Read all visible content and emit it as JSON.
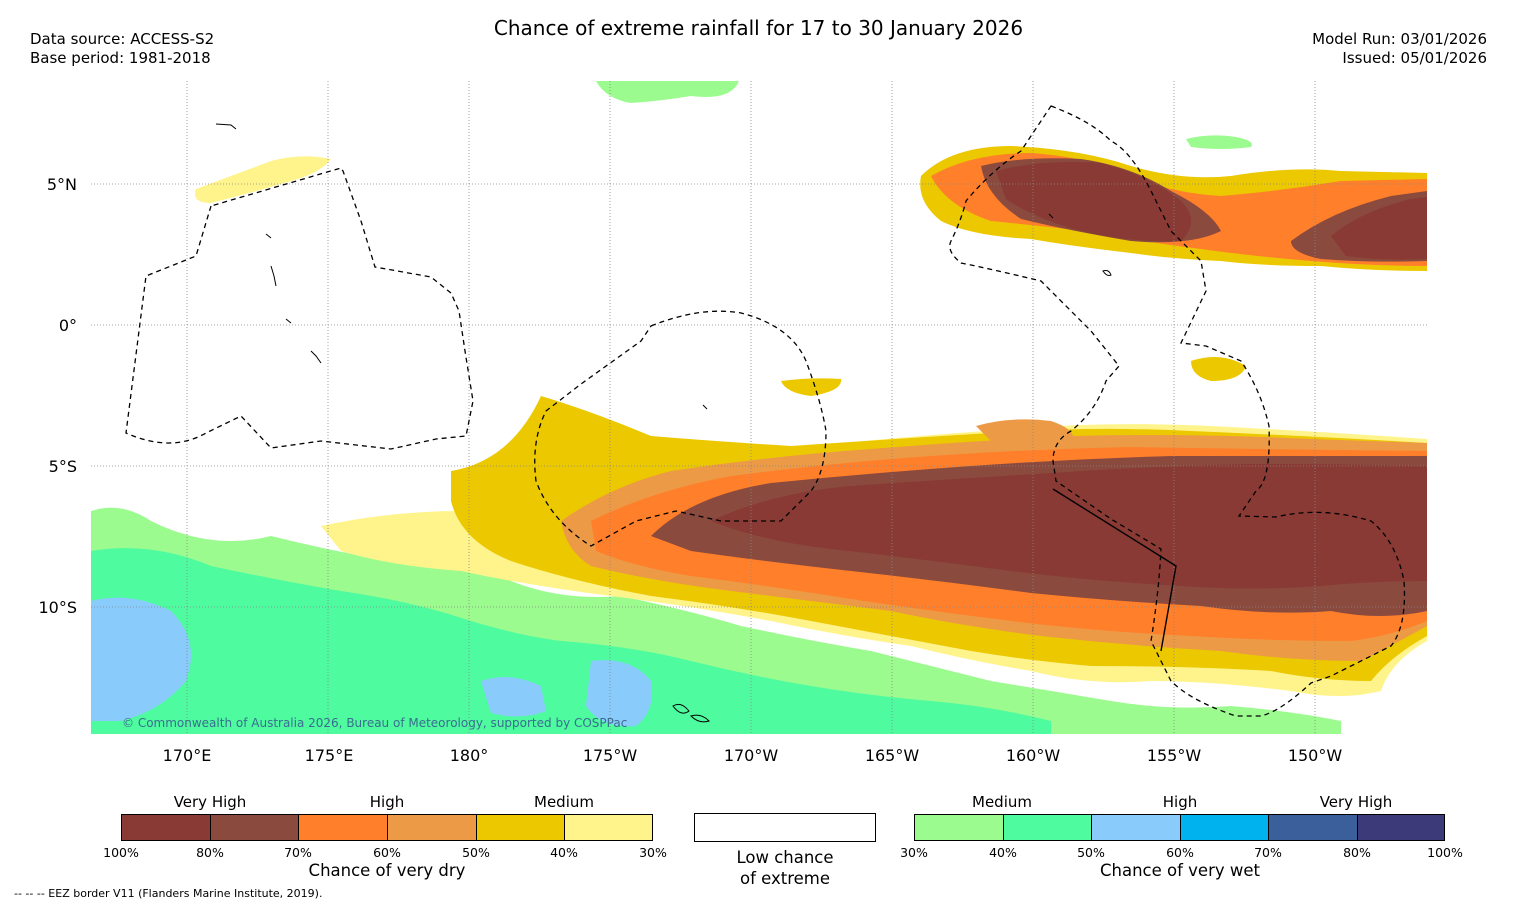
{
  "header": {
    "title": "Chance of extreme rainfall for 17 to 30 January 2026",
    "data_source": "Data source: ACCESS-S2",
    "base_period": "Base period: 1981-2018",
    "model_run": "Model Run: 03/01/2026",
    "issued": "Issued: 05/01/2026"
  },
  "map": {
    "lat_labels": [
      "5°N",
      "0°",
      "5°S",
      "10°S"
    ],
    "lon_labels": [
      "170°E",
      "175°E",
      "180°",
      "175°W",
      "170°W",
      "165°W",
      "160°W",
      "155°W",
      "150°W"
    ],
    "copyright": "© Commonwealth of Australia 2026, Bureau of Meteorology, supported by COSPPac"
  },
  "legend": {
    "dry": {
      "categories": [
        "Very High",
        "High",
        "Medium"
      ],
      "colors": [
        "#893a34",
        "#8a4a3e",
        "#ff7f2a",
        "#ec9a46",
        "#ecc800",
        "#fff48b"
      ],
      "ticks": [
        "100%",
        "80%",
        "70%",
        "60%",
        "50%",
        "40%",
        "30%"
      ],
      "caption": "Chance of very dry"
    },
    "low": {
      "line1": "Low chance",
      "line2": "of extreme"
    },
    "wet": {
      "categories": [
        "Medium",
        "High",
        "Very High"
      ],
      "colors": [
        "#9cfb8f",
        "#4efb9f",
        "#89cbfb",
        "#00b2ee",
        "#3a5f9a",
        "#3c3a78"
      ],
      "ticks": [
        "30%",
        "40%",
        "50%",
        "60%",
        "70%",
        "80%",
        "100%"
      ],
      "caption": "Chance of very wet"
    }
  },
  "footer": {
    "eez_note": "--  --  -- EEZ border V11 (Flanders Marine Institute, 2019)."
  }
}
